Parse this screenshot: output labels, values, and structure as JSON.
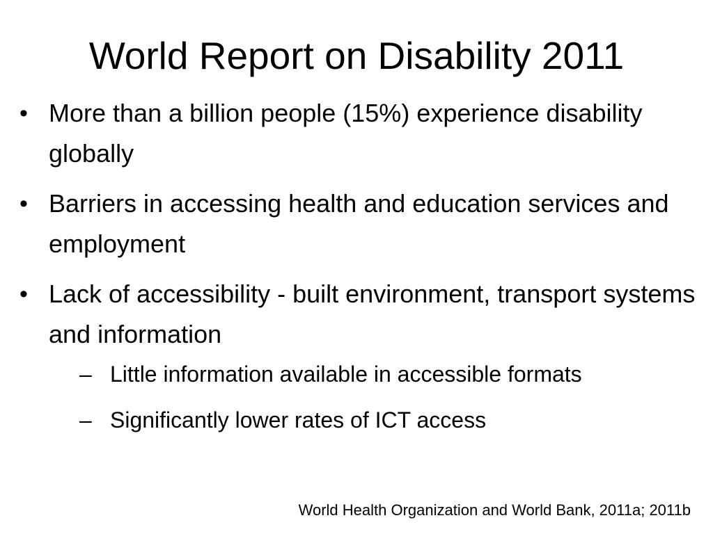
{
  "slide": {
    "title": "World Report on Disability 2011",
    "bullets": [
      {
        "marker": "•",
        "text": "More than a billion people (15%) experience disability globally"
      },
      {
        "marker": "•",
        "text": "Barriers in accessing health and education services and employment"
      },
      {
        "marker": "•",
        "text": "Lack of accessibility - built environment, transport systems and information"
      }
    ],
    "subbullets": [
      {
        "marker": "–",
        "text": " Little information available in accessible formats"
      },
      {
        "marker": "–",
        "text": "Significantly lower rates of ICT access"
      }
    ],
    "citation": "World Health Organization and World Bank, 2011a; 2011b"
  }
}
